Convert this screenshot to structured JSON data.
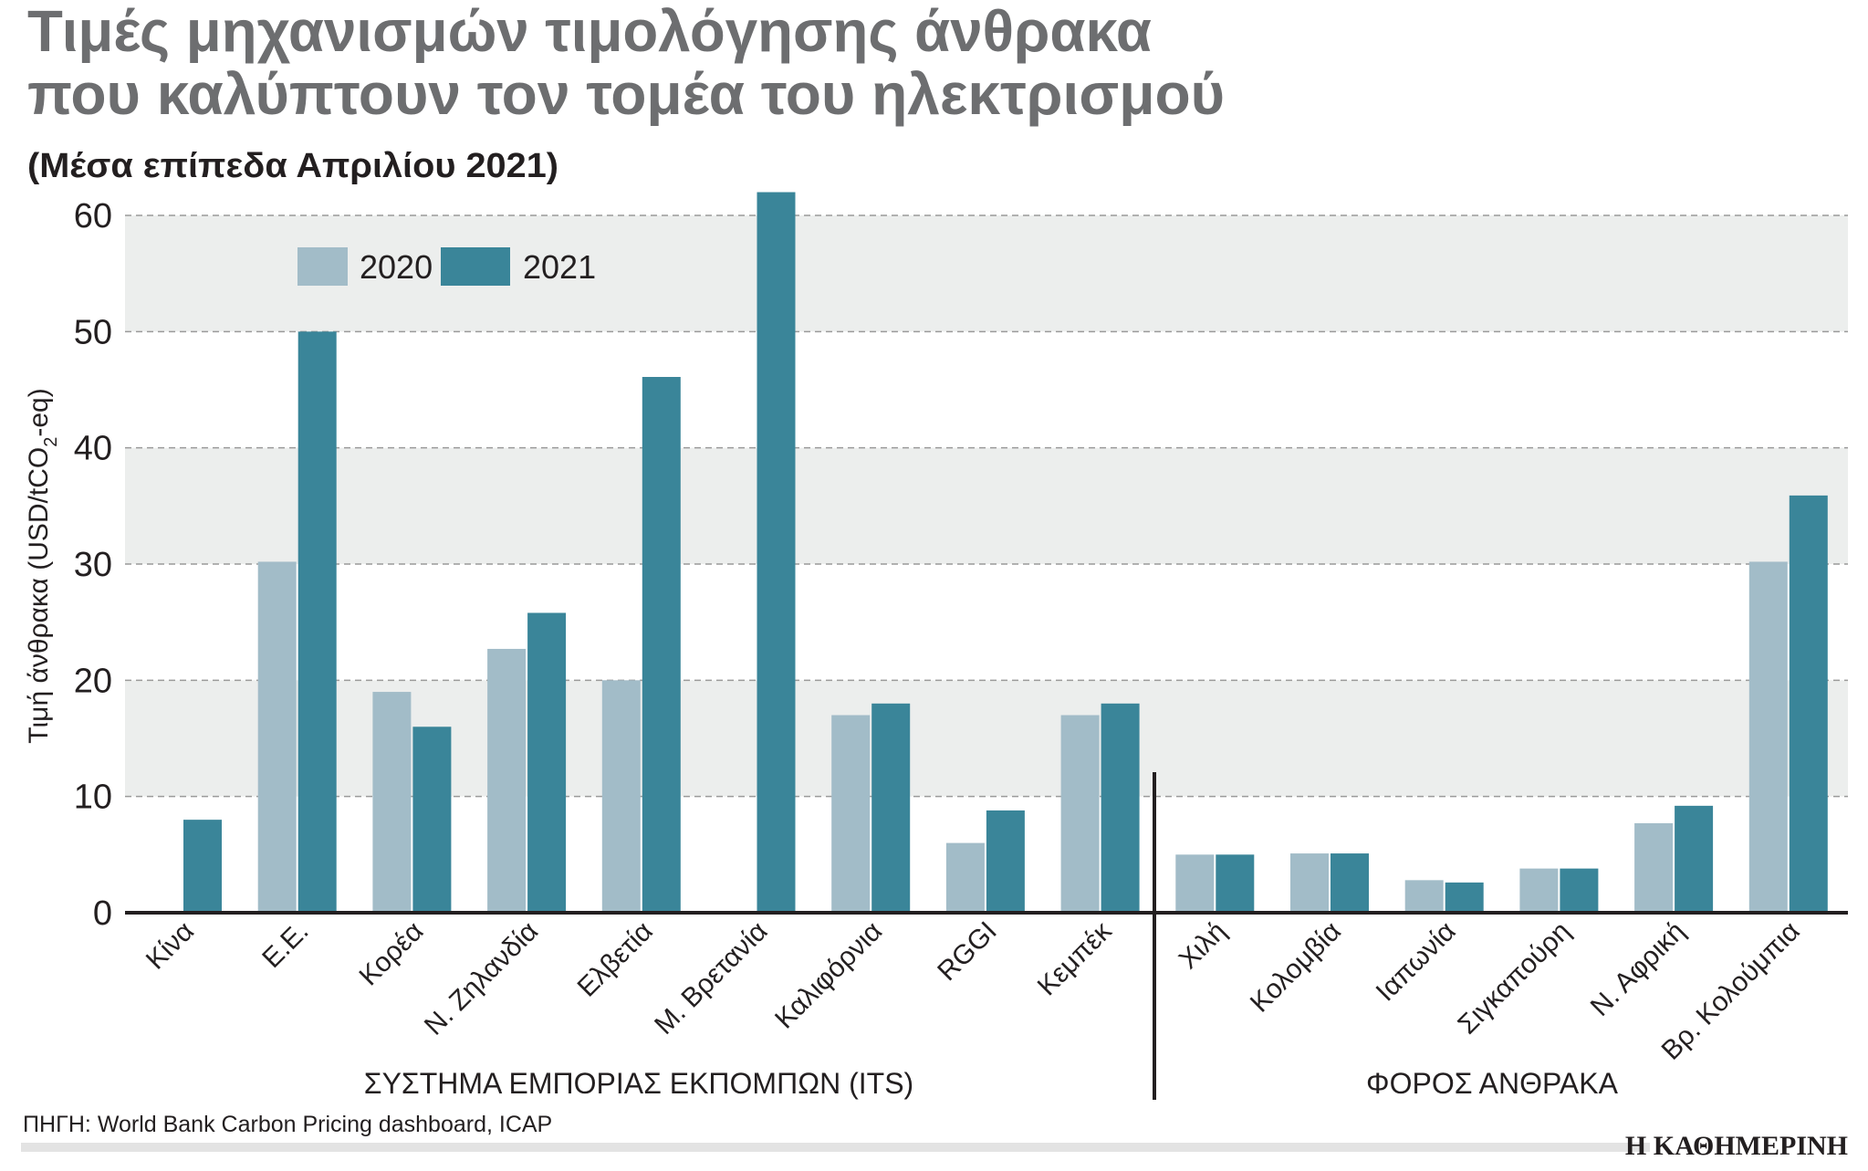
{
  "title_line1": "Τιμές μηχανισμών τιμολόγησης άνθρακα",
  "title_line2": "που καλύπτουν τον τομέα του ηλεκτρισμού",
  "subtitle": "(Μέσα επίπεδα Απριλίου 2021)",
  "source": "ΠΗΓΗ: World Bank Carbon Pricing dashboard, ICAP",
  "logo": "Η ΚΑΘΗΜΕΡΙΝΗ",
  "colors": {
    "2020": "#a2bcc8",
    "2021": "#3a8599",
    "band": "#eceeed"
  },
  "chart_data": {
    "type": "bar",
    "ylabel_main": "Τιμή άνθρακα (USD/tCO",
    "ylabel_sub": "2",
    "ylabel_end": "-eq)",
    "ylim": [
      0,
      60
    ],
    "yticks": [
      0,
      10,
      20,
      30,
      40,
      50,
      60
    ],
    "grid": true,
    "legend": "top-left",
    "categories": [
      "Κίνα",
      "Ε.Ε.",
      "Κορέα",
      "Ν. Ζηλανδία",
      "Ελβετία",
      "Μ. Βρετανία",
      "Καλιφόρνια",
      "RGGI",
      "Κεμπέκ",
      "Χιλή",
      "Κολομβία",
      "Ιαπωνία",
      "Σιγκαπούρη",
      "Ν. Αφρική",
      "Βρ. Κολούμπια"
    ],
    "series": [
      {
        "name": "2020",
        "values": [
          null,
          30.2,
          19,
          22.7,
          20,
          null,
          17,
          6,
          17,
          5,
          5.1,
          2.8,
          3.8,
          7.7,
          30.2
        ]
      },
      {
        "name": "2021",
        "values": [
          8,
          50,
          16,
          25.8,
          46.1,
          62,
          18,
          8.8,
          18,
          5,
          5.1,
          2.6,
          3.8,
          9.2,
          35.9
        ]
      }
    ],
    "groups": [
      {
        "label": "ΣΥΣΤΗΜΑ ΕΜΠΟΡΙΑΣ ΕΚΠΟΜΠΩΝ (ITS)",
        "count": 9
      },
      {
        "label": "ΦΟΡΟΣ ΑΝΘΡΑΚΑ",
        "count": 6
      }
    ]
  }
}
